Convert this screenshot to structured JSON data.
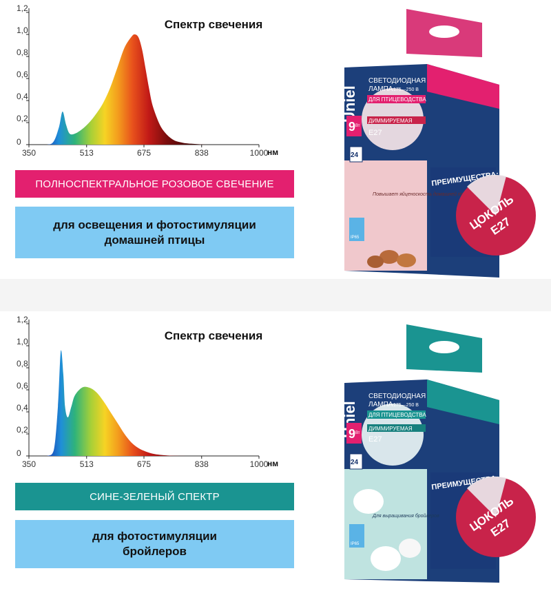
{
  "colors": {
    "pink": "#e3206f",
    "teal": "#1a9491",
    "light_blue": "#7fcaf3",
    "navy": "#13306b",
    "seal_red": "#c8234a"
  },
  "products": [
    {
      "band_title": "ПОЛНОСПЕКТРАЛЬНОЕ РОЗОВОЕ СВЕЧЕНИЕ",
      "description_line1": "для освещения и фотостимуляции",
      "description_line2": "домашней птицы",
      "package": {
        "brand": "Uniel",
        "line1": "СВЕТОДИОДНАЯ",
        "line2": "ЛАМПА",
        "voltage": "175—250 В",
        "purpose": "ДЛЯ ПТИЦЕВОДСТВА",
        "dimmable": "ДИММИРУЕМАЯ",
        "socket": "E27",
        "power": "9",
        "power_unit": "Вт",
        "hours": "24",
        "advantages": "ПРЕИМУЩЕСТВА:",
        "slogan": "Повышает яйценоскость домашней птицы",
        "ip": "IP65"
      },
      "seal": {
        "line1": "ЦОКОЛЬ",
        "line2": "E27"
      }
    },
    {
      "band_title": "СИНЕ-ЗЕЛЕНЫЙ СПЕКТР",
      "description_line1": "для фотостимуляции",
      "description_line2": "бройлеров",
      "package": {
        "brand": "Uniel",
        "line1": "СВЕТОДИОДНАЯ",
        "line2": "ЛАМПА",
        "voltage": "175—250 В",
        "purpose": "ДЛЯ ПТИЦЕВОДСТВА",
        "dimmable": "ДИММИРУЕМАЯ",
        "socket": "E27",
        "power": "9",
        "power_unit": "Вт",
        "hours": "24",
        "advantages": "ПРЕИМУЩЕСТВА:",
        "slogan": "Для выращивания бройлеров",
        "ip": "IP65"
      },
      "seal": {
        "line1": "ЦОКОЛЬ",
        "line2": "E27"
      }
    }
  ],
  "chart_data": [
    {
      "type": "area",
      "title": "Спектр свечения",
      "x_unit_label": "нм",
      "x_ticks": [
        "350",
        "513",
        "675",
        "838",
        "1000"
      ],
      "y_ticks": [
        "0",
        "0,2",
        "0,4",
        "0,6",
        "0,8",
        "1,0",
        "1,2"
      ],
      "xlim": [
        350,
        1000
      ],
      "ylim": [
        0,
        1.2
      ],
      "grid": false,
      "x": [
        350,
        400,
        420,
        435,
        445,
        455,
        465,
        480,
        500,
        520,
        540,
        560,
        580,
        600,
        620,
        640,
        650,
        660,
        670,
        680,
        690,
        700,
        720,
        740,
        760,
        780,
        800,
        850
      ],
      "y": [
        0,
        0,
        0.03,
        0.16,
        0.3,
        0.18,
        0.1,
        0.1,
        0.14,
        0.2,
        0.28,
        0.38,
        0.52,
        0.7,
        0.88,
        0.98,
        1.0,
        0.97,
        0.86,
        0.68,
        0.5,
        0.35,
        0.18,
        0.09,
        0.04,
        0.02,
        0.01,
        0
      ]
    },
    {
      "type": "area",
      "title": "Спектр свечения",
      "x_unit_label": "нм",
      "x_ticks": [
        "350",
        "513",
        "675",
        "838",
        "1000"
      ],
      "y_ticks": [
        "0",
        "0,2",
        "0,4",
        "0,6",
        "0,8",
        "1,0",
        "1,2"
      ],
      "xlim": [
        350,
        1000
      ],
      "ylim": [
        0,
        1.2
      ],
      "grid": false,
      "x": [
        350,
        400,
        420,
        432,
        440,
        447,
        452,
        460,
        470,
        480,
        500,
        520,
        540,
        560,
        580,
        600,
        620,
        640,
        660,
        680,
        700,
        720,
        740,
        760,
        800
      ],
      "y": [
        0,
        0,
        0.05,
        0.45,
        0.95,
        0.75,
        0.45,
        0.35,
        0.45,
        0.55,
        0.62,
        0.62,
        0.58,
        0.5,
        0.4,
        0.3,
        0.2,
        0.12,
        0.07,
        0.04,
        0.02,
        0.01,
        0.005,
        0.002,
        0
      ]
    }
  ]
}
